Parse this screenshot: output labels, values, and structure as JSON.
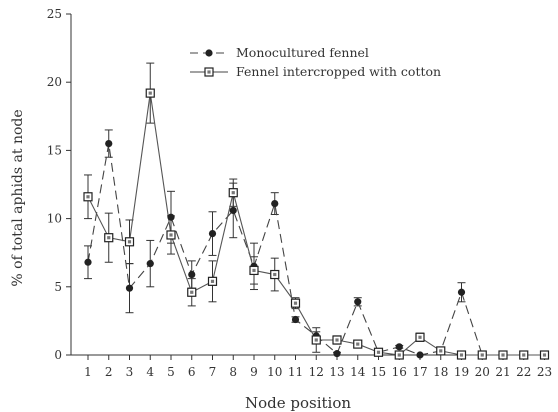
{
  "chart_data": {
    "type": "line",
    "xlabel": "Node position",
    "ylabel": "% of total aphids at node",
    "ylim": [
      0,
      25
    ],
    "yticks": [
      0,
      5,
      10,
      15,
      20,
      25
    ],
    "x": [
      1,
      2,
      3,
      4,
      5,
      6,
      7,
      8,
      9,
      10,
      11,
      12,
      13,
      14,
      15,
      16,
      17,
      18,
      19,
      20,
      21,
      22,
      23
    ],
    "legend_position": "top-center",
    "series": [
      {
        "name": "Monocultured fennel",
        "marker": "filled-circle",
        "line_style": "dashed",
        "values": [
          6.8,
          15.5,
          4.9,
          6.7,
          10.1,
          5.9,
          8.9,
          10.6,
          6.5,
          11.1,
          2.6,
          1.4,
          0.1,
          3.9,
          0.2,
          0.6,
          0.0,
          0.3,
          4.6,
          0.0,
          0.0,
          0.0,
          0.0
        ],
        "errors": [
          1.2,
          1.0,
          1.8,
          1.7,
          1.9,
          1.0,
          1.6,
          2.0,
          1.7,
          0.8,
          0.2,
          0.3,
          0.1,
          0.3,
          0.1,
          0.1,
          0.0,
          0.1,
          0.7,
          0.0,
          0.0,
          0.0,
          0.0
        ]
      },
      {
        "name": "Fennel intercropped with cotton",
        "marker": "open-square",
        "line_style": "solid",
        "values": [
          11.6,
          8.6,
          8.3,
          19.2,
          8.8,
          4.6,
          5.4,
          11.9,
          6.2,
          5.9,
          3.8,
          1.1,
          1.1,
          0.8,
          0.2,
          0.0,
          1.3,
          0.3,
          0.0,
          0.0,
          0.0,
          0.0,
          0.0
        ],
        "errors": [
          1.6,
          1.8,
          1.6,
          2.2,
          1.4,
          1.0,
          1.5,
          1.0,
          1.0,
          1.2,
          0.4,
          0.9,
          0.3,
          0.2,
          0.1,
          0.0,
          0.3,
          0.1,
          0.0,
          0.0,
          0.0,
          0.0,
          0.0
        ]
      }
    ]
  }
}
